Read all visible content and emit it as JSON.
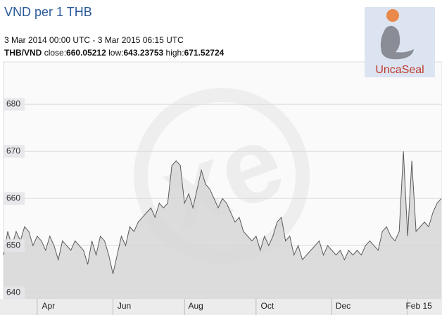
{
  "chart_data": {
    "type": "area",
    "title": "VND per 1 THB",
    "subtitle": "3 Mar 2014 00:00 UTC - 3 Mar 2015 06:15 UTC",
    "pair": "THB/VND",
    "stats": [
      {
        "label": "close:",
        "value": 660.05212
      },
      {
        "label": "low:",
        "value": 643.23753
      },
      {
        "label": "high:",
        "value": 671.52724
      }
    ],
    "logo": "UncaSeal",
    "color": "#d6d6d6",
    "line_color": "#5a5a5a",
    "grid": true,
    "ylim": [
      638.7,
      689
    ],
    "yticks": [
      640,
      650,
      660,
      670,
      680
    ],
    "categories": [
      null,
      null,
      null,
      null,
      null,
      null,
      null,
      null,
      "Apr",
      null,
      null,
      null,
      null,
      null,
      null,
      null,
      null,
      null,
      null,
      null,
      null,
      null,
      null,
      null,
      null,
      null,
      "Jun",
      null,
      null,
      null,
      null,
      null,
      null,
      null,
      null,
      null,
      null,
      null,
      null,
      null,
      null,
      null,
      null,
      "Aug",
      null,
      null,
      null,
      null,
      null,
      null,
      null,
      null,
      null,
      null,
      null,
      null,
      null,
      null,
      null,
      null,
      "Oct",
      null,
      null,
      null,
      null,
      null,
      null,
      null,
      null,
      null,
      null,
      null,
      null,
      null,
      null,
      null,
      null,
      null,
      "Dec",
      null,
      null,
      null,
      null,
      null,
      null,
      null,
      null,
      null,
      null,
      null,
      null,
      null,
      null,
      null,
      null,
      null,
      "Feb 15",
      null,
      null,
      null,
      null,
      null,
      null,
      null,
      null
    ],
    "values": [
      648,
      653,
      650,
      653,
      651,
      654,
      653,
      650,
      652,
      651,
      649,
      652,
      650,
      647,
      651,
      650,
      649,
      651,
      650,
      649,
      646,
      651,
      648,
      652,
      651,
      648,
      644,
      648,
      652,
      650,
      654,
      653,
      655,
      656,
      657,
      658,
      656,
      659,
      658,
      659,
      667,
      668,
      667,
      659,
      661,
      658,
      662,
      666,
      663,
      662,
      660,
      658,
      660,
      659,
      657,
      655,
      656,
      653,
      652,
      651,
      652,
      649,
      652,
      650,
      652,
      655,
      656,
      651,
      652,
      648,
      650,
      647,
      648,
      649,
      650,
      651,
      648,
      650,
      649,
      648,
      649,
      647,
      649,
      648,
      649,
      648,
      650,
      651,
      650,
      649,
      653,
      654,
      652,
      651,
      653,
      670,
      652,
      668,
      653,
      654,
      655,
      654,
      657,
      659,
      660
    ]
  }
}
